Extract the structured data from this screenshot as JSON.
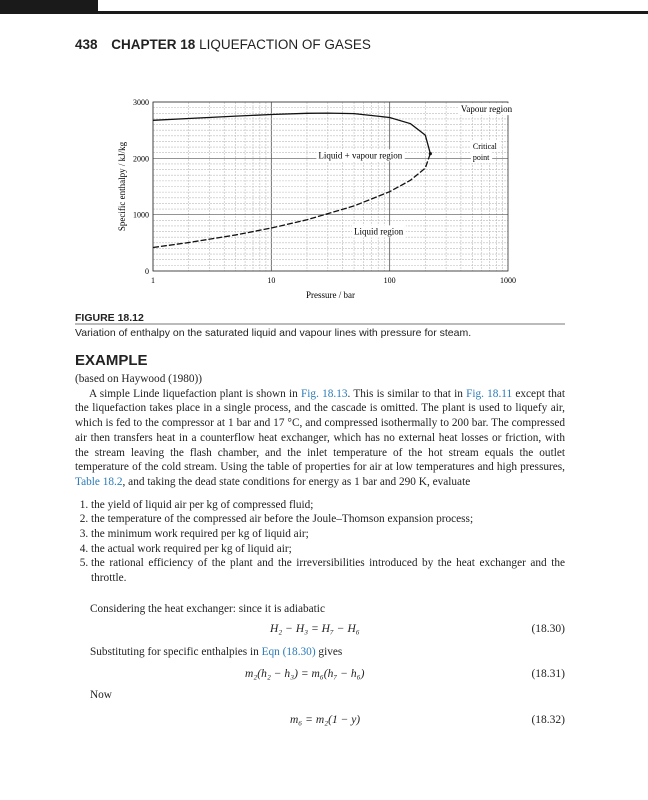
{
  "header": {
    "page_number": "438",
    "chapter": "CHAPTER 18",
    "chapter_title": "LIQUEFACTION OF GASES"
  },
  "chart_data": {
    "type": "line",
    "xlabel": "Pressure / bar",
    "ylabel": "Specific enthalpy / kJ/kg",
    "xscale": "log",
    "xlim": [
      1,
      1000
    ],
    "ylim": [
      0,
      3000
    ],
    "grid": true,
    "xticks": [
      "1",
      "10",
      "100",
      "1000"
    ],
    "yticks": [
      "0",
      "1000",
      "2000",
      "3000"
    ],
    "series": [
      {
        "style": "solid",
        "x": [
          1,
          2,
          5,
          10,
          20,
          30,
          50,
          100,
          150,
          200,
          220.6
        ],
        "y": [
          2675,
          2707,
          2749,
          2778,
          2799,
          2803,
          2794,
          2725,
          2615,
          2412,
          2084
        ]
      },
      {
        "style": "dashed",
        "x": [
          1,
          2,
          5,
          10,
          20,
          50,
          100,
          150,
          200,
          220.6
        ],
        "y": [
          417,
          505,
          640,
          763,
          909,
          1155,
          1408,
          1611,
          1827,
          2084
        ]
      }
    ],
    "annotations": [
      {
        "text": "Vapour region",
        "x": 400,
        "y": 2820
      },
      {
        "text": "Liquid + vapour region",
        "x": 25,
        "y": 2000
      },
      {
        "text": "Liquid region",
        "x": 50,
        "y": 650
      },
      {
        "text": "Critical",
        "x": 400,
        "y": 2170
      },
      {
        "text": "point",
        "x": 400,
        "y": 1970
      }
    ],
    "critical_point": {
      "x": 220.6,
      "y": 2084
    }
  },
  "figure": {
    "label": "FIGURE 18.12",
    "caption": "Variation of enthalpy on the saturated liquid and vapour lines with pressure for steam."
  },
  "example": {
    "heading": "EXAMPLE",
    "source": "(based on Haywood (1980))",
    "p1a": "A simple Linde liquefaction plant is shown in ",
    "link1": "Fig. 18.13",
    "p1b": ". This is similar to that in ",
    "link2": "Fig. 18.11",
    "p1c": " except that the liquefaction takes place in a single process, and the cascade is omitted. The plant is used to liquefy air, which is fed to the compressor at 1 bar and 17 °C, and compressed isothermally to 200 bar. The compressed air then transfers heat in a counterflow heat exchanger, which has no external heat losses or friction, with the stream leaving the flash chamber, and the inlet temperature of the hot stream equals the outlet temperature of the cold stream. Using the table of properties for air at low temperatures and high pressures, ",
    "link3": "Table 18.2",
    "p1d": ", and taking the dead state conditions for energy as 1 bar and 290 K, evaluate",
    "items": [
      "the yield of liquid air per kg of compressed fluid;",
      "the temperature of the compressed air before the Joule–Thomson expansion process;",
      "the minimum work required per kg of liquid air;",
      "the actual work required per kg of liquid air;",
      "the rational efficiency of the plant and the irreversibilities introduced by the heat exchanger and the throttle."
    ],
    "p2": "Considering the heat exchanger: since it is adiabatic",
    "eq1": "H₂ − H₃ = H₇ − H₆",
    "eq1n": "(18.30)",
    "p3a": "Substituting for specific enthalpies in ",
    "link4": "Eqn (18.30)",
    "p3b": " gives",
    "eq2": "m₂(h₂ − h₃) = m₆(h₇ − h₆)",
    "eq2n": "(18.31)",
    "p4": "Now",
    "eq3": "m₆ = m₂(1 − y)",
    "eq3n": "(18.32)"
  }
}
